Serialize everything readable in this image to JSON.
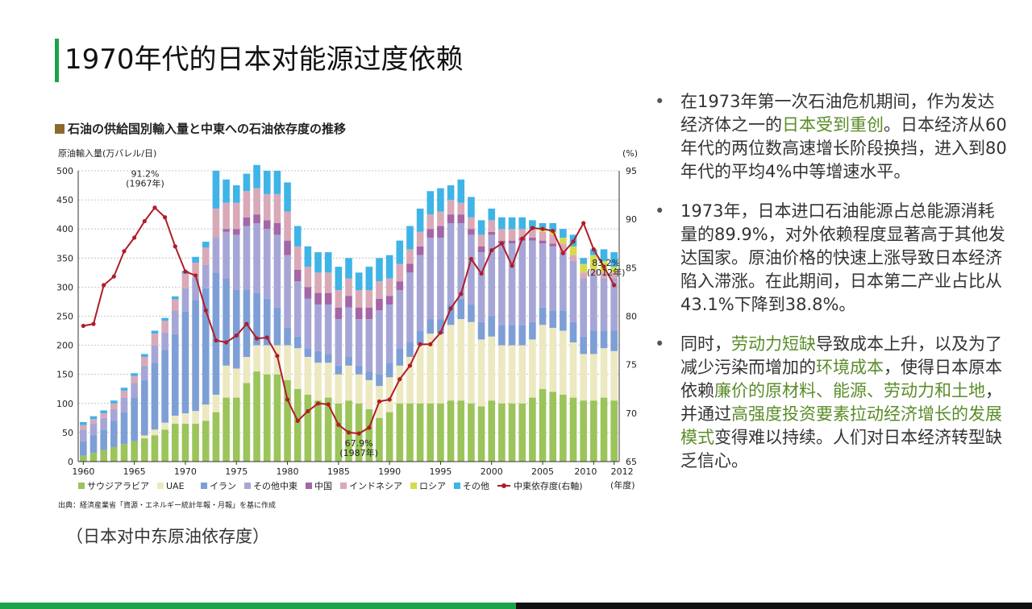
{
  "title": "1970年代的日本对能源过度依赖",
  "chart_heading": "石油の供給国別輸入量と中東への石油依存度の推移",
  "caption": "（日本对中东原油依存度）",
  "bullets": [
    {
      "segments": [
        {
          "text": "在1973年第一次石油危机期间，作为发达经济体之一的",
          "hl": false
        },
        {
          "text": "日本受到重创",
          "hl": true
        },
        {
          "text": "。日本经济从60年代的两位数高速增长阶段换挡，进入到80年代的平均4%中等增速水平。",
          "hl": false
        }
      ]
    },
    {
      "segments": [
        {
          "text": "1973年，日本进口石油能源占总能源消耗量的89.9%，对外依赖程度显著高于其他发达国家。原油价格的快速上涨导致日本经济陷入滞涨。在此期间，日本第二产业占比从43.1%下降到38.8%。",
          "hl": false
        }
      ]
    },
    {
      "segments": [
        {
          "text": "同时，",
          "hl": false
        },
        {
          "text": "劳动力短缺",
          "hl": true
        },
        {
          "text": "导致成本上升，以及为了减少污染而增加的",
          "hl": false
        },
        {
          "text": "环境成本",
          "hl": true
        },
        {
          "text": "，使得日本原本依赖",
          "hl": false
        },
        {
          "text": "廉价的原材料、能源、劳动力和土地",
          "hl": true
        },
        {
          "text": "，并通过",
          "hl": false
        },
        {
          "text": "高强度投资要素拉动经济增长的发展模式",
          "hl": true
        },
        {
          "text": "变得难以持续。人们对日本经济转型缺乏信心。",
          "hl": false
        }
      ]
    }
  ],
  "colors": {
    "accent_green": "#1aa34a",
    "highlight": "#5b8c2a"
  },
  "chart_data": {
    "type": "bar",
    "stacked": true,
    "title": "石油の供給国別輸入量と中東への石油依存度の推移",
    "ylabel_left": "原油輸入量(万バレル/日)",
    "ylabel_right": "(%)",
    "x_unit": "(年度)",
    "source": "出典：経済産業省「資源・エネルギー統計年報・月報」を基に作成",
    "ylim_left": [
      0,
      500
    ],
    "yticks_left": [
      0,
      50,
      100,
      150,
      200,
      250,
      300,
      350,
      400,
      450,
      500
    ],
    "ylim_right": [
      65,
      95
    ],
    "yticks_right": [
      65,
      70,
      75,
      80,
      85,
      90,
      95
    ],
    "xticks": [
      "1960",
      "1965",
      "1970",
      "1975",
      "1980",
      "1985",
      "1990",
      "1995",
      "2000",
      "2005",
      "2010",
      "2012"
    ],
    "years": [
      1960,
      1961,
      1962,
      1963,
      1964,
      1965,
      1966,
      1967,
      1968,
      1969,
      1970,
      1971,
      1972,
      1973,
      1974,
      1975,
      1976,
      1977,
      1978,
      1979,
      1980,
      1981,
      1982,
      1983,
      1984,
      1985,
      1986,
      1987,
      1988,
      1989,
      1990,
      1991,
      1992,
      1993,
      1994,
      1995,
      1996,
      1997,
      1998,
      1999,
      2000,
      2001,
      2002,
      2003,
      2004,
      2005,
      2006,
      2007,
      2008,
      2009,
      2010,
      2011,
      2012
    ],
    "series": [
      {
        "name": "サウジアラビア",
        "color": "#9bc45a",
        "values": [
          10,
          15,
          20,
          25,
          30,
          35,
          40,
          45,
          55,
          65,
          65,
          65,
          70,
          85,
          110,
          110,
          135,
          155,
          150,
          150,
          140,
          125,
          115,
          105,
          110,
          100,
          105,
          100,
          90,
          75,
          85,
          100,
          100,
          100,
          100,
          100,
          105,
          105,
          100,
          95,
          105,
          100,
          100,
          100,
          110,
          125,
          120,
          115,
          110,
          105,
          105,
          110,
          105
        ]
      },
      {
        "name": "UAE",
        "color": "#ece8c0",
        "values": [
          0,
          0,
          0,
          0,
          0,
          0,
          5,
          10,
          12,
          14,
          18,
          22,
          28,
          30,
          55,
          50,
          45,
          45,
          50,
          50,
          60,
          70,
          65,
          65,
          60,
          50,
          60,
          50,
          50,
          55,
          60,
          65,
          80,
          100,
          120,
          120,
          130,
          140,
          140,
          115,
          110,
          100,
          100,
          100,
          100,
          110,
          110,
          110,
          95,
          80,
          80,
          85,
          85
        ]
      },
      {
        "name": "イラン",
        "color": "#7d9fd6",
        "values": [
          25,
          30,
          35,
          45,
          55,
          75,
          95,
          115,
          125,
          140,
          175,
          190,
          200,
          210,
          150,
          135,
          115,
          90,
          80,
          65,
          30,
          20,
          15,
          20,
          15,
          15,
          15,
          15,
          15,
          20,
          25,
          30,
          25,
          25,
          25,
          25,
          35,
          35,
          30,
          30,
          35,
          35,
          35,
          35,
          30,
          30,
          30,
          35,
          35,
          30,
          40,
          30,
          35
        ]
      },
      {
        "name": "その他中東",
        "color": "#a6a6d6",
        "values": [
          20,
          20,
          20,
          20,
          25,
          25,
          25,
          30,
          30,
          40,
          40,
          40,
          40,
          60,
          80,
          95,
          110,
          120,
          120,
          125,
          125,
          95,
          85,
          80,
          85,
          80,
          85,
          80,
          90,
          110,
          100,
          100,
          120,
          130,
          140,
          140,
          140,
          130,
          120,
          120,
          140,
          140,
          140,
          145,
          140,
          110,
          110,
          100,
          105,
          100,
          95,
          90,
          90
        ]
      },
      {
        "name": "中国",
        "color": "#a466a6",
        "values": [
          0,
          0,
          0,
          0,
          0,
          0,
          0,
          0,
          0,
          0,
          0,
          0,
          0,
          0,
          5,
          10,
          15,
          15,
          15,
          20,
          25,
          20,
          20,
          20,
          20,
          20,
          20,
          20,
          20,
          20,
          15,
          15,
          15,
          15,
          15,
          20,
          15,
          15,
          10,
          10,
          5,
          5,
          5,
          5,
          5,
          5,
          5,
          0,
          0,
          0,
          0,
          0,
          0
        ]
      },
      {
        "name": "インドネシア",
        "color": "#d9a9b8",
        "values": [
          8,
          8,
          8,
          10,
          12,
          12,
          15,
          20,
          20,
          20,
          25,
          25,
          30,
          50,
          45,
          45,
          45,
          45,
          45,
          50,
          50,
          40,
          35,
          35,
          35,
          30,
          30,
          30,
          30,
          30,
          30,
          30,
          25,
          25,
          25,
          25,
          25,
          20,
          20,
          20,
          20,
          20,
          20,
          15,
          15,
          15,
          15,
          15,
          10,
          10,
          10,
          10,
          10
        ]
      },
      {
        "name": "ロシア",
        "color": "#d6db4e",
        "values": [
          0,
          0,
          0,
          0,
          0,
          0,
          0,
          0,
          0,
          0,
          0,
          0,
          0,
          0,
          0,
          0,
          0,
          0,
          0,
          0,
          0,
          0,
          0,
          0,
          0,
          0,
          0,
          0,
          0,
          0,
          0,
          0,
          0,
          0,
          0,
          0,
          0,
          0,
          0,
          0,
          0,
          0,
          0,
          0,
          0,
          5,
          5,
          10,
          15,
          15,
          25,
          20,
          10
        ]
      },
      {
        "name": "その他",
        "color": "#3fb4e6",
        "values": [
          5,
          5,
          5,
          5,
          5,
          5,
          5,
          5,
          5,
          5,
          5,
          10,
          10,
          65,
          40,
          30,
          30,
          40,
          40,
          40,
          50,
          35,
          35,
          35,
          35,
          40,
          35,
          30,
          40,
          40,
          40,
          40,
          40,
          40,
          40,
          40,
          25,
          40,
          35,
          25,
          20,
          20,
          20,
          20,
          15,
          10,
          15,
          15,
          20,
          10,
          10,
          20,
          25
        ]
      }
    ],
    "line": {
      "name": "中東依存度(右軸)",
      "color": "#b01c2a",
      "values": [
        79,
        79.2,
        83.2,
        84.1,
        86.7,
        88.1,
        89.8,
        91.2,
        90.2,
        87.2,
        84.6,
        84.2,
        80.6,
        77.5,
        77.3,
        78.0,
        79.2,
        77.7,
        77.8,
        75.9,
        71.4,
        69.2,
        70.2,
        71.0,
        70.9,
        68.8,
        68.0,
        67.9,
        68.5,
        71.2,
        71.4,
        73.5,
        74.9,
        77.1,
        77.1,
        78.3,
        80.8,
        82.3,
        85.9,
        84.4,
        86.8,
        87.5,
        85.2,
        88.0,
        89.1,
        89.0,
        88.8,
        86.5,
        87.7,
        89.6,
        86.9,
        85.1,
        83.2
      ]
    },
    "annotations": [
      {
        "text": "91.2%",
        "text2": "(1967年)"
      },
      {
        "text": "67.9%",
        "text2": "(1987年)"
      },
      {
        "text": "83.2%",
        "text2": "(2012年)"
      }
    ]
  }
}
